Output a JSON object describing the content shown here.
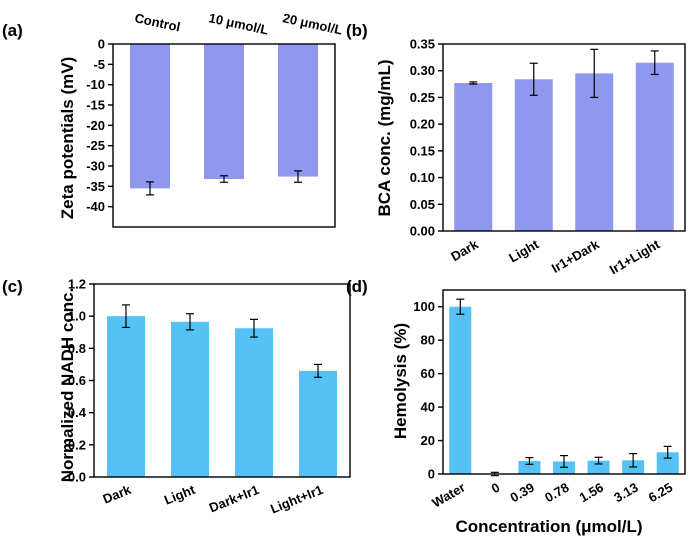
{
  "figure": {
    "panel_count": 4
  },
  "chart_data": [
    {
      "id": "a",
      "panel_label": "(a)",
      "type": "bar",
      "categories": [
        "Control",
        "10 μmol/L",
        "20 μmol/L"
      ],
      "values": [
        -35.5,
        -33.2,
        -32.6
      ],
      "errors": [
        1.6,
        0.8,
        1.4
      ],
      "ylabel": "Zeta potentials (mV)",
      "xlabel": "",
      "ylim": [
        -45,
        0
      ],
      "yticks": [
        0,
        -5,
        -10,
        -15,
        -20,
        -25,
        -30,
        -35,
        -40
      ],
      "category_position": "top",
      "bar_color": "#8f97ef"
    },
    {
      "id": "b",
      "panel_label": "(b)",
      "type": "bar",
      "categories": [
        "Dark",
        "Light",
        "Ir1+Dark",
        "Ir1+Light"
      ],
      "values": [
        0.277,
        0.284,
        0.295,
        0.315
      ],
      "errors": [
        0.002,
        0.03,
        0.045,
        0.022
      ],
      "ylabel": "BCA conc. (mg/mL)",
      "xlabel": "",
      "ylim": [
        0,
        0.35
      ],
      "yticks": [
        0.0,
        0.05,
        0.1,
        0.15,
        0.2,
        0.25,
        0.3,
        0.35
      ],
      "ytick_decimals": 2,
      "category_position": "bottom",
      "bar_color": "#8f97ef"
    },
    {
      "id": "c",
      "panel_label": "(c)",
      "type": "bar",
      "categories": [
        "Dark",
        "Light",
        "Dark+Ir1",
        "Light+Ir1"
      ],
      "values": [
        1.0,
        0.965,
        0.925,
        0.66
      ],
      "errors": [
        0.07,
        0.05,
        0.055,
        0.04
      ],
      "ylabel": "Normalized NADH conc.",
      "xlabel": "",
      "ylim": [
        0,
        1.2
      ],
      "yticks": [
        0.0,
        0.2,
        0.4,
        0.6,
        0.8,
        1.0,
        1.2
      ],
      "ytick_decimals": 1,
      "category_position": "bottom",
      "bar_color": "#56c1f5"
    },
    {
      "id": "d",
      "panel_label": "(d)",
      "type": "bar",
      "categories": [
        "Water",
        "0",
        "0.39",
        "0.78",
        "1.56",
        "3.13",
        "6.25"
      ],
      "values": [
        100,
        0,
        7.8,
        7.5,
        8.0,
        8.2,
        13.0
      ],
      "errors": [
        4.5,
        1.0,
        2.0,
        3.5,
        2.0,
        4.0,
        3.5
      ],
      "ylabel": "Hemolysis (%)",
      "xlabel": "Concentration (μmol/L)",
      "ylim": [
        0,
        110
      ],
      "yticks": [
        0,
        20,
        40,
        60,
        80,
        100
      ],
      "category_position": "bottom",
      "bar_color": "#56c1f5"
    }
  ]
}
